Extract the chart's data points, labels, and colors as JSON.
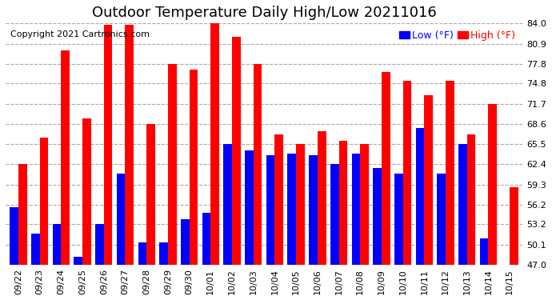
{
  "title": "Outdoor Temperature Daily High/Low 20211016",
  "copyright": "Copyright 2021 Cartronics.com",
  "legend_low": "Low",
  "legend_high": "High",
  "legend_unit": "(°F)",
  "dates": [
    "09/22",
    "09/23",
    "09/24",
    "09/25",
    "09/26",
    "09/27",
    "09/28",
    "09/29",
    "09/30",
    "10/01",
    "10/02",
    "10/03",
    "10/04",
    "10/05",
    "10/06",
    "10/07",
    "10/08",
    "10/09",
    "10/10",
    "10/11",
    "10/12",
    "10/13",
    "10/14",
    "10/15"
  ],
  "highs": [
    62.4,
    66.5,
    79.9,
    69.5,
    83.8,
    83.8,
    68.6,
    77.8,
    76.9,
    84.0,
    81.9,
    77.8,
    67.0,
    65.5,
    67.5,
    66.0,
    65.5,
    76.6,
    75.2,
    73.0,
    75.2,
    67.0,
    71.7,
    58.9
  ],
  "lows": [
    55.8,
    51.8,
    53.2,
    48.2,
    53.2,
    61.0,
    50.5,
    50.5,
    54.0,
    55.0,
    65.5,
    64.5,
    63.8,
    64.0,
    63.8,
    62.4,
    64.0,
    61.9,
    61.0,
    68.0,
    61.0,
    65.5,
    51.0,
    47.0
  ],
  "bar_color_high": "#ff0000",
  "bar_color_low": "#0000ff",
  "background_color": "#ffffff",
  "grid_color": "#aaaaaa",
  "ylim_min": 47.0,
  "ylim_max": 84.0,
  "yticks": [
    47.0,
    50.1,
    53.2,
    56.2,
    59.3,
    62.4,
    65.5,
    68.6,
    71.7,
    74.8,
    77.8,
    80.9,
    84.0
  ],
  "title_fontsize": 13,
  "copyright_fontsize": 8,
  "tick_fontsize": 8,
  "legend_fontsize": 9
}
